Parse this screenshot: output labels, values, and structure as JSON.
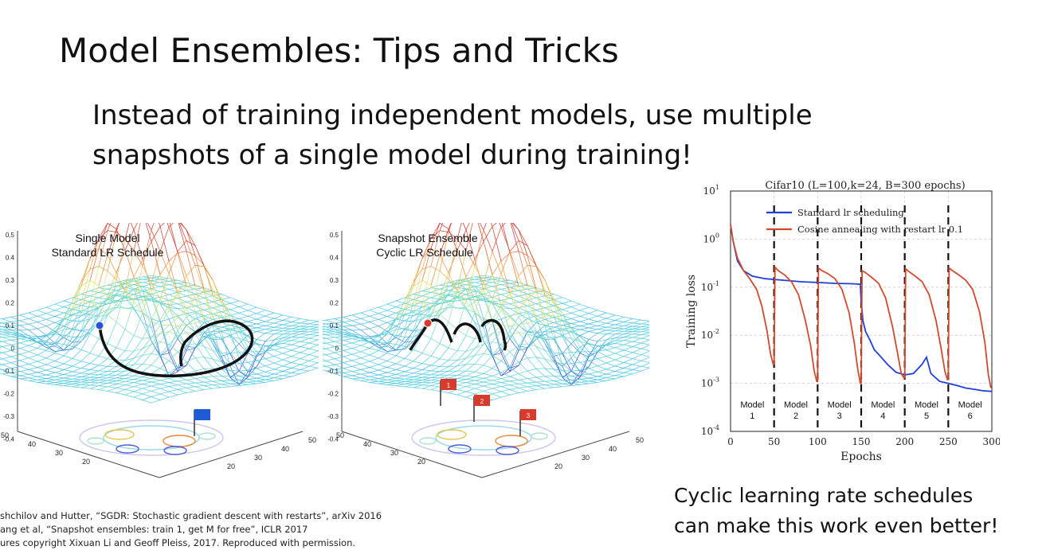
{
  "slide": {
    "title_bold": "Model Ensembles:",
    "title_rest": " Tips and Tricks",
    "subtitle_lines": [
      "Instead of training independent models, use multiple",
      "snapshots of a single model during training!"
    ],
    "caption_lines": [
      "Cyclic learning rate schedules",
      "can make this work even better!"
    ],
    "references": [
      "shchilov and Hutter, “SGDR: Stochastic gradient descent with restarts”, arXiv 2016",
      "ang et al, “Snapshot ensembles: train 1, get M for free”, ICLR 2017",
      "ures copyright Xixuan Li and Geoff Pleiss, 2017. Reproduced with permission."
    ]
  },
  "surface_left": {
    "label_line1": "Single Model",
    "label_line2": "Standard LR Schedule",
    "z_ticks": [
      "0.5",
      "0.4",
      "0.3",
      "0.2",
      "0.1",
      "0",
      "-0.1",
      "-0.2",
      "-0.3",
      "-0.4"
    ],
    "x_ticks": [
      "50",
      "40",
      "30",
      "20"
    ],
    "y_ticks": [
      "50",
      "40",
      "30",
      "20"
    ],
    "flag_color": "#1f5bd6"
  },
  "surface_right": {
    "label_line1": "Snapshot Ensemble",
    "label_line2": "Cyclic LR Schedule",
    "z_ticks": [
      "0.5",
      "0.4",
      "0.3",
      "0.2",
      "0.1",
      "0",
      "-0.1",
      "-0.2",
      "-0.3",
      "-0.4"
    ],
    "x_ticks": [
      "50",
      "40",
      "30",
      "20"
    ],
    "y_ticks": [
      "50",
      "40",
      "30",
      "20"
    ],
    "flags": [
      "1",
      "2",
      "3"
    ],
    "flag_color": "#d93a2b"
  },
  "chart_data": {
    "type": "line",
    "title": "Cifar10 (L=100,k=24, B=300 epochs)",
    "xlabel": "Epochs",
    "ylabel": "Training loss",
    "xlim": [
      0,
      300
    ],
    "ylim": [
      0.0001,
      10
    ],
    "yscale": "log",
    "x_ticks": [
      "0",
      "50",
      "100",
      "150",
      "200",
      "250",
      "300"
    ],
    "y_ticks": [
      "10^1",
      "10^0",
      "10^-1",
      "10^-2",
      "10^-3",
      "10^-4"
    ],
    "grid": true,
    "legend_position": "top",
    "restart_epochs": [
      50,
      100,
      150,
      200,
      250
    ],
    "model_labels": [
      "Model 1",
      "Model 2",
      "Model 3",
      "Model 4",
      "Model 5",
      "Model 6"
    ],
    "series": [
      {
        "name": "Standard lr scheduling",
        "color": "#1f3fdc",
        "x": [
          0,
          3,
          8,
          15,
          25,
          40,
          60,
          80,
          100,
          120,
          140,
          149,
          150,
          152,
          155,
          160,
          165,
          170,
          180,
          190,
          200,
          210,
          215,
          220,
          225,
          230,
          240,
          250,
          260,
          270,
          280,
          290,
          300
        ],
        "y": [
          2.0,
          0.9,
          0.35,
          0.22,
          0.17,
          0.15,
          0.14,
          0.13,
          0.125,
          0.12,
          0.118,
          0.115,
          0.05,
          0.02,
          0.012,
          0.008,
          0.005,
          0.004,
          0.0025,
          0.0017,
          0.0015,
          0.0016,
          0.002,
          0.0025,
          0.0035,
          0.0016,
          0.0011,
          0.001,
          0.0009,
          0.0008,
          0.00075,
          0.0007,
          0.00068
        ]
      },
      {
        "name": "Cosine annealing with restart lr 0.1",
        "color": "#d24a2c",
        "x": [
          0,
          3,
          8,
          15,
          22,
          30,
          36,
          42,
          46,
          49,
          50,
          51,
          55,
          62,
          70,
          78,
          86,
          92,
          96,
          99,
          100,
          101,
          105,
          112,
          120,
          128,
          136,
          142,
          146,
          149,
          150,
          151,
          155,
          162,
          170,
          178,
          186,
          192,
          196,
          199,
          200,
          201,
          205,
          212,
          220,
          228,
          236,
          242,
          246,
          249,
          250,
          251,
          255,
          262,
          270,
          278,
          286,
          292,
          296,
          299
        ],
        "y": [
          2.0,
          0.9,
          0.4,
          0.22,
          0.15,
          0.09,
          0.04,
          0.012,
          0.004,
          0.0025,
          0.0025,
          0.26,
          0.22,
          0.18,
          0.13,
          0.07,
          0.02,
          0.006,
          0.0018,
          0.0011,
          0.0011,
          0.25,
          0.22,
          0.19,
          0.15,
          0.09,
          0.03,
          0.007,
          0.002,
          0.001,
          0.001,
          0.22,
          0.2,
          0.16,
          0.12,
          0.06,
          0.015,
          0.004,
          0.0016,
          0.0013,
          0.0013,
          0.24,
          0.21,
          0.17,
          0.13,
          0.07,
          0.02,
          0.005,
          0.0018,
          0.0012,
          0.0012,
          0.25,
          0.22,
          0.18,
          0.14,
          0.09,
          0.03,
          0.007,
          0.0015,
          0.0008
        ]
      }
    ]
  }
}
